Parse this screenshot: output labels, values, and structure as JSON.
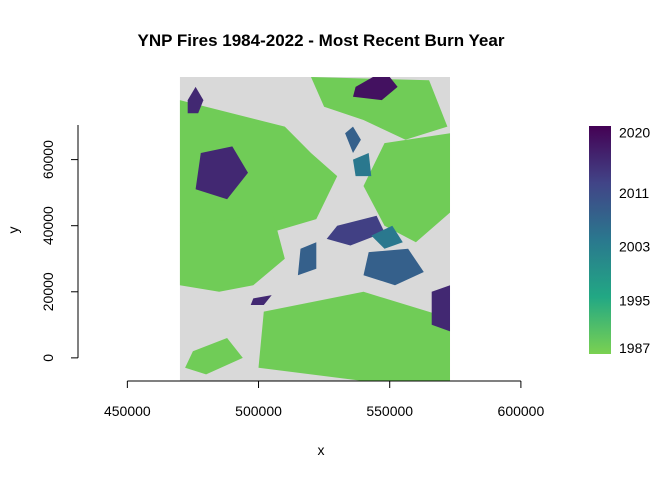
{
  "chart_data": {
    "type": "heatmap",
    "title": "YNP Fires 1984-2022 - Most Recent Burn Year",
    "xlabel": "x",
    "ylabel": "y",
    "x_ticks": [
      450000,
      500000,
      550000,
      600000
    ],
    "x_tick_labels": [
      "450000",
      "500000",
      "550000",
      "600000"
    ],
    "y_ticks": [
      0,
      20000,
      40000,
      60000
    ],
    "y_tick_labels": [
      "0",
      "20000",
      "40000",
      "60000"
    ],
    "xlim": [
      435000,
      613000
    ],
    "ylim": [
      -7000,
      85000
    ],
    "raster_extent": {
      "x": [
        470000,
        573000
      ],
      "y": [
        -13000,
        97000
      ]
    },
    "background_color": "#d9d9d9",
    "legend": {
      "position": "right",
      "ticks": [
        1987,
        1995,
        2003,
        2011,
        2020
      ],
      "tick_labels": [
        "1987",
        "1995",
        "2003",
        "2011",
        "2020"
      ],
      "min": 1987,
      "max": 2021,
      "colors": [
        "#7ad151",
        "#22a884",
        "#2a788e",
        "#414487",
        "#440154"
      ]
    },
    "burn_regions": [
      {
        "year": 1988,
        "points": [
          [
            470,
            78
          ],
          [
            510,
            70
          ],
          [
            520,
            62
          ],
          [
            530,
            55
          ],
          [
            522,
            42
          ],
          [
            505,
            38
          ],
          [
            492,
            40
          ],
          [
            475,
            34
          ],
          [
            470,
            40
          ]
        ]
      },
      {
        "year": 1988,
        "points": [
          [
            470,
            40
          ],
          [
            490,
            42
          ],
          [
            505,
            45
          ],
          [
            510,
            30
          ],
          [
            498,
            22
          ],
          [
            485,
            20
          ],
          [
            470,
            22
          ]
        ]
      },
      {
        "year": 1988,
        "points": [
          [
            520,
            85
          ],
          [
            565,
            84
          ],
          [
            572,
            70
          ],
          [
            556,
            66
          ],
          [
            540,
            72
          ],
          [
            525,
            76
          ]
        ]
      },
      {
        "year": 1988,
        "points": [
          [
            548,
            65
          ],
          [
            573,
            68
          ],
          [
            573,
            44
          ],
          [
            560,
            35
          ],
          [
            548,
            40
          ],
          [
            540,
            52
          ]
        ]
      },
      {
        "year": 1988,
        "points": [
          [
            502,
            14
          ],
          [
            540,
            20
          ],
          [
            573,
            12
          ],
          [
            573,
            -7
          ],
          [
            540,
            -7
          ],
          [
            500,
            -3
          ]
        ]
      },
      {
        "year": 1988,
        "points": [
          [
            475,
            2
          ],
          [
            488,
            6
          ],
          [
            494,
            0
          ],
          [
            480,
            -5
          ],
          [
            472,
            -3
          ]
        ]
      },
      {
        "year": 2016,
        "points": [
          [
            478,
            62
          ],
          [
            490,
            64
          ],
          [
            496,
            56
          ],
          [
            488,
            48
          ],
          [
            476,
            51
          ]
        ]
      },
      {
        "year": 2016,
        "points": [
          [
            473,
            78
          ],
          [
            476,
            82
          ],
          [
            479,
            78
          ],
          [
            477,
            74
          ],
          [
            473,
            74
          ]
        ]
      },
      {
        "year": 2016,
        "points": [
          [
            566,
            20
          ],
          [
            573,
            22
          ],
          [
            573,
            8
          ],
          [
            566,
            10
          ]
        ]
      },
      {
        "year": 2016,
        "points": [
          [
            498,
            18
          ],
          [
            505,
            19
          ],
          [
            502,
            16
          ],
          [
            497,
            16
          ]
        ]
      },
      {
        "year": 2013,
        "points": [
          [
            530,
            40
          ],
          [
            545,
            43
          ],
          [
            548,
            38
          ],
          [
            535,
            34
          ],
          [
            526,
            36
          ]
        ]
      },
      {
        "year": 2019,
        "points": [
          [
            537,
            82
          ],
          [
            548,
            87
          ],
          [
            553,
            82
          ],
          [
            547,
            78
          ],
          [
            536,
            79
          ]
        ]
      },
      {
        "year": 2008,
        "points": [
          [
            542,
            32
          ],
          [
            557,
            33
          ],
          [
            563,
            26
          ],
          [
            552,
            22
          ],
          [
            540,
            25
          ]
        ]
      },
      {
        "year": 2008,
        "points": [
          [
            516,
            33
          ],
          [
            522,
            35
          ],
          [
            522,
            27
          ],
          [
            515,
            25
          ]
        ]
      },
      {
        "year": 2008,
        "points": [
          [
            533,
            68
          ],
          [
            536,
            70
          ],
          [
            539,
            66
          ],
          [
            536,
            62
          ]
        ]
      },
      {
        "year": 2004,
        "points": [
          [
            543,
            37
          ],
          [
            551,
            40
          ],
          [
            555,
            35
          ],
          [
            548,
            33
          ]
        ]
      },
      {
        "year": 2004,
        "points": [
          [
            536,
            60
          ],
          [
            542,
            62
          ],
          [
            543,
            55
          ],
          [
            537,
            55
          ]
        ]
      }
    ]
  }
}
